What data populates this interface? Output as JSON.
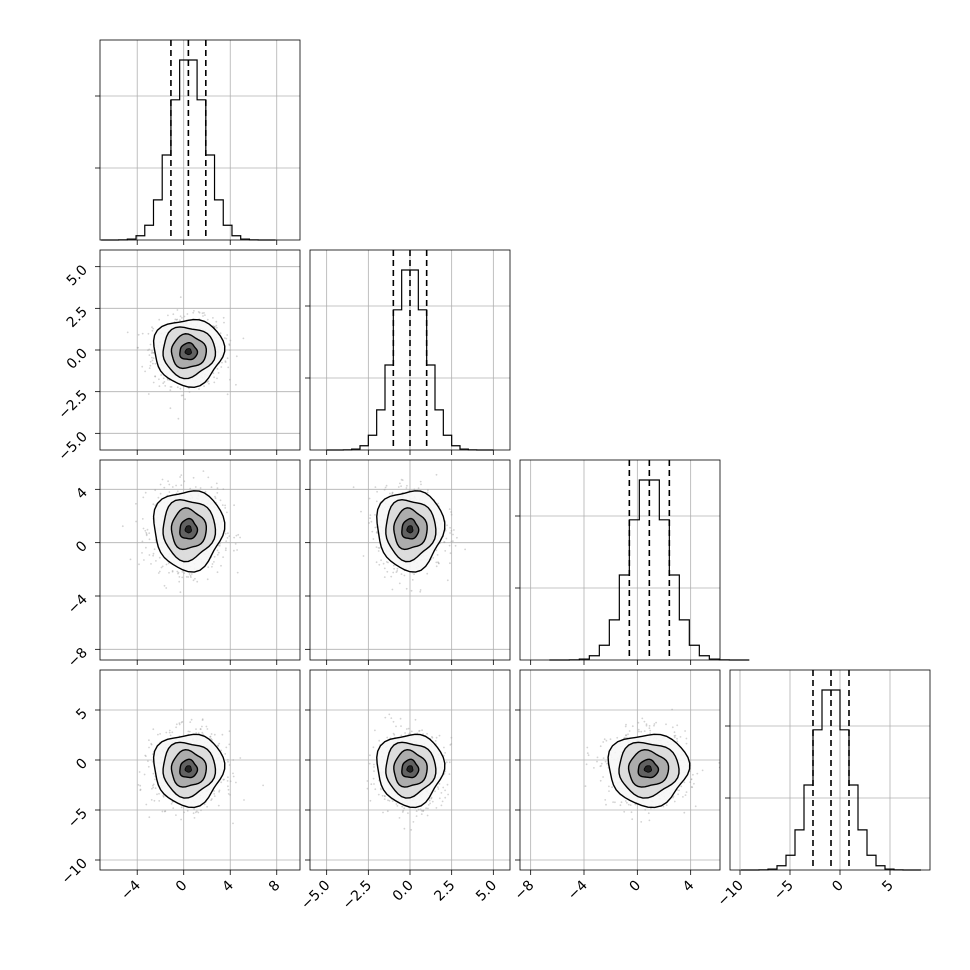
{
  "chart_data": {
    "type": "corner",
    "parameters": 4,
    "grid": true,
    "colors": {
      "hist": "#000000",
      "contour": "#000000",
      "scatter": "#9e9e9e",
      "quantile": "#000000",
      "grid": "#b0b0b0"
    },
    "axes": {
      "p0": {
        "range": [
          -7.2,
          10.0
        ],
        "ticks": [
          -4,
          0,
          4,
          8
        ],
        "tick_labels": [
          "−4",
          "0",
          "4",
          "8"
        ]
      },
      "p1": {
        "range": [
          -6.0,
          6.0
        ],
        "ticks": [
          -5.0,
          -2.5,
          0.0,
          2.5,
          5.0
        ],
        "tick_labels": [
          "−5.0",
          "−2.5",
          "0.0",
          "2.5",
          "5.0"
        ]
      },
      "p2": {
        "range": [
          -8.8,
          6.2
        ],
        "ticks": [
          -8,
          -4,
          0,
          4
        ],
        "tick_labels": [
          "−8",
          "−4",
          "0",
          "4"
        ]
      },
      "p3": {
        "range": [
          -11.0,
          9.0
        ],
        "ticks": [
          -10,
          -5,
          0,
          5
        ],
        "tick_labels": [
          "−10",
          "−5",
          "0",
          "5"
        ]
      }
    },
    "marginals": [
      {
        "param": "p0",
        "center": 0.4,
        "sigma": 1.5,
        "quantiles": [
          -1.1,
          0.4,
          1.9
        ]
      },
      {
        "param": "p1",
        "center": 0.0,
        "sigma": 1.0,
        "quantiles": [
          -1.0,
          0.0,
          1.0
        ]
      },
      {
        "param": "p2",
        "center": 0.9,
        "sigma": 1.5,
        "quantiles": [
          -0.6,
          0.9,
          2.4
        ]
      },
      {
        "param": "p3",
        "center": -0.9,
        "sigma": 1.8,
        "quantiles": [
          -2.7,
          -0.9,
          0.9
        ]
      }
    ],
    "joints": [
      {
        "x": "p0",
        "y": "p1",
        "center": [
          0.4,
          -0.1
        ]
      },
      {
        "x": "p0",
        "y": "p2",
        "center": [
          0.4,
          1.0
        ]
      },
      {
        "x": "p1",
        "y": "p2",
        "center": [
          0.0,
          1.0
        ]
      },
      {
        "x": "p0",
        "y": "p3",
        "center": [
          0.4,
          -0.9
        ]
      },
      {
        "x": "p1",
        "y": "p3",
        "center": [
          0.0,
          -0.9
        ]
      },
      {
        "x": "p2",
        "y": "p3",
        "center": [
          0.8,
          -0.9
        ]
      }
    ]
  }
}
